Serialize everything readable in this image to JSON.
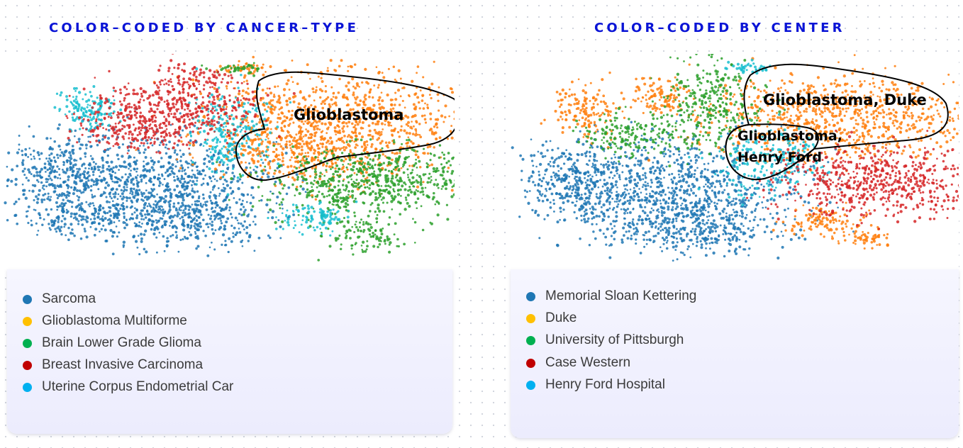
{
  "panels": [
    {
      "title": "COLOR–CODED BY CANCER–TYPE",
      "legend": [
        {
          "label": "Sarcoma",
          "color": "#1f77b4"
        },
        {
          "label": "Glioblastoma Multiforme",
          "color": "#ffc000"
        },
        {
          "label": "Brain Lower Grade Glioma",
          "color": "#00b050"
        },
        {
          "label": "Breast Invasive Carcinoma",
          "color": "#c00000"
        },
        {
          "label": "Uterine Corpus Endometrial Car",
          "color": "#00b0f0"
        }
      ],
      "annotations": [
        "Glioblastoma"
      ]
    },
    {
      "title": "COLOR–CODED BY CENTER",
      "legend": [
        {
          "label": "Memorial Sloan Kettering",
          "color": "#1f77b4"
        },
        {
          "label": "Duke",
          "color": "#ffc000"
        },
        {
          "label": "University of Pittsburgh",
          "color": "#00b050"
        },
        {
          "label": "Case Western",
          "color": "#c00000"
        },
        {
          "label": "Henry Ford Hospital",
          "color": "#00b0f0"
        }
      ],
      "annotations": [
        "Glioblastoma, Duke",
        "Glioblastoma,",
        "Henry Ford"
      ]
    }
  ],
  "chart_data": [
    {
      "type": "scatter",
      "title": "COLOR–CODED BY CANCER–TYPE",
      "xlabel": "",
      "ylabel": "",
      "grid": false,
      "legend_placement": "bottom",
      "series": [
        {
          "name": "Sarcoma",
          "color": "#1f77b4"
        },
        {
          "name": "Glioblastoma Multiforme",
          "color": "#ff7f0e"
        },
        {
          "name": "Brain Lower Grade Glioma",
          "color": "#2ca02c"
        },
        {
          "name": "Breast Invasive Carcinoma",
          "color": "#d62728"
        },
        {
          "name": "Uterine Corpus Endometrial Car",
          "color": "#17becf"
        }
      ],
      "annotations": [
        "Glioblastoma"
      ]
    },
    {
      "type": "scatter",
      "title": "COLOR–CODED BY CENTER",
      "xlabel": "",
      "ylabel": "",
      "grid": false,
      "legend_placement": "bottom",
      "series": [
        {
          "name": "Memorial Sloan Kettering",
          "color": "#1f77b4"
        },
        {
          "name": "Duke",
          "color": "#ff7f0e"
        },
        {
          "name": "University of Pittsburgh",
          "color": "#2ca02c"
        },
        {
          "name": "Case Western",
          "color": "#d62728"
        },
        {
          "name": "Henry Ford Hospital",
          "color": "#17becf"
        }
      ],
      "annotations": [
        "Glioblastoma, Duke",
        "Glioblastoma,",
        "Henry Ford"
      ]
    }
  ]
}
